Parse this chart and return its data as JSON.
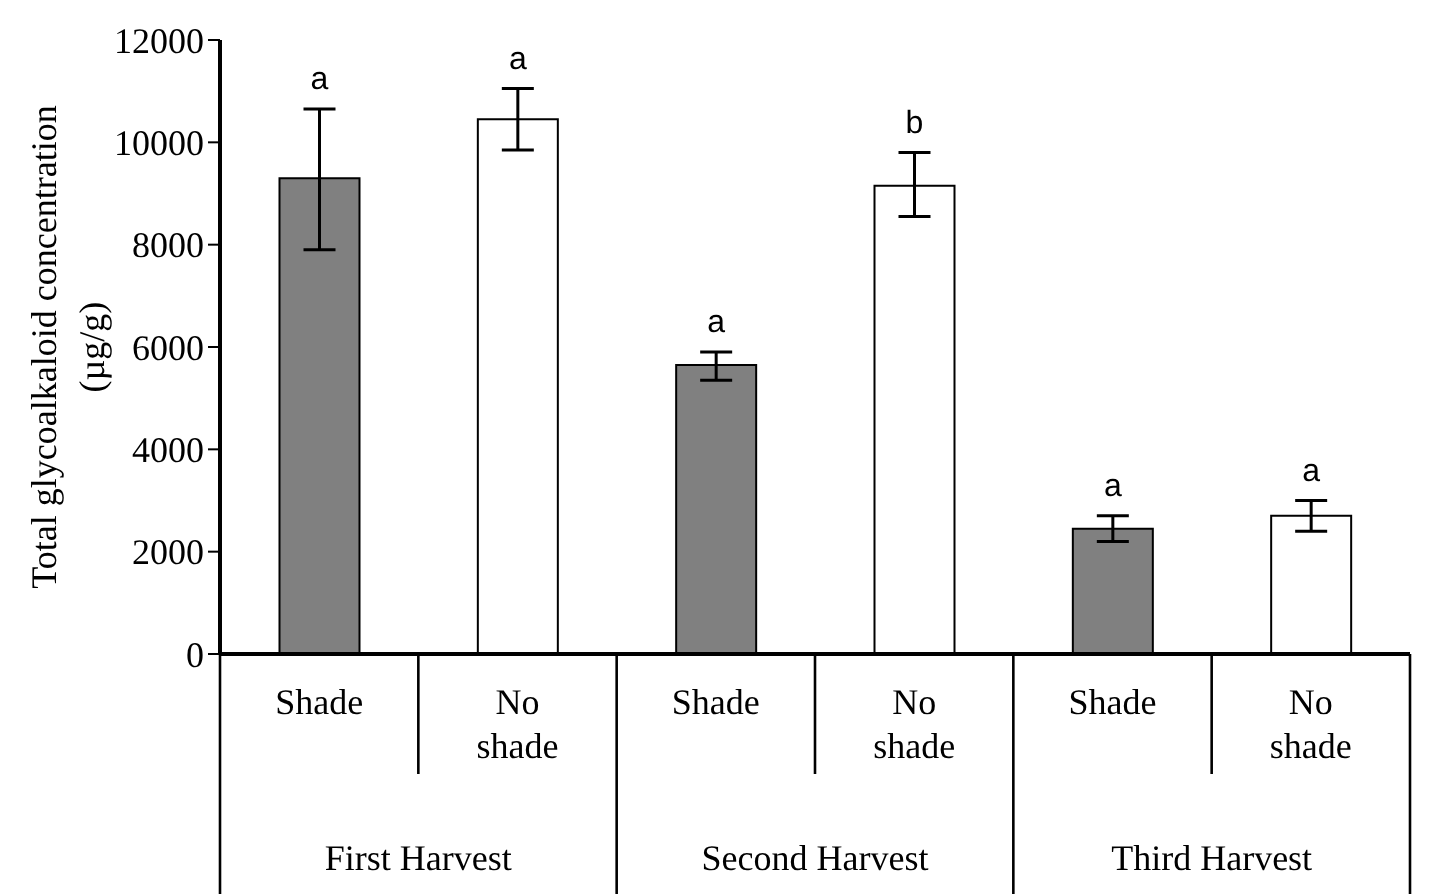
{
  "chart_data": {
    "type": "bar",
    "ylabel": "Total glycoalkaloid concentration (µg/g)",
    "categories": [
      "Shade",
      "No shade",
      "Shade",
      "No shade",
      "Shade",
      "No shade"
    ],
    "values": [
      9300,
      10450,
      5650,
      9150,
      2450,
      2700
    ],
    "colors": [
      "#808080",
      "#ffffff",
      "#808080",
      "#ffffff",
      "#808080",
      "#ffffff"
    ],
    "errors": [
      [
        7900,
        10650
      ],
      [
        9850,
        11050
      ],
      [
        5350,
        5900
      ],
      [
        8550,
        9800
      ],
      [
        2200,
        2700
      ],
      [
        2400,
        3000
      ]
    ],
    "value_labels": [
      "a",
      "a",
      "a",
      "b",
      "a",
      "a"
    ],
    "annotations": [
      "First Harvest",
      "Second Harvest",
      "Third Harvest"
    ],
    "ylim": [
      0,
      12000
    ],
    "yticks": [
      0,
      2000,
      4000,
      6000,
      8000,
      10000,
      12000
    ]
  }
}
